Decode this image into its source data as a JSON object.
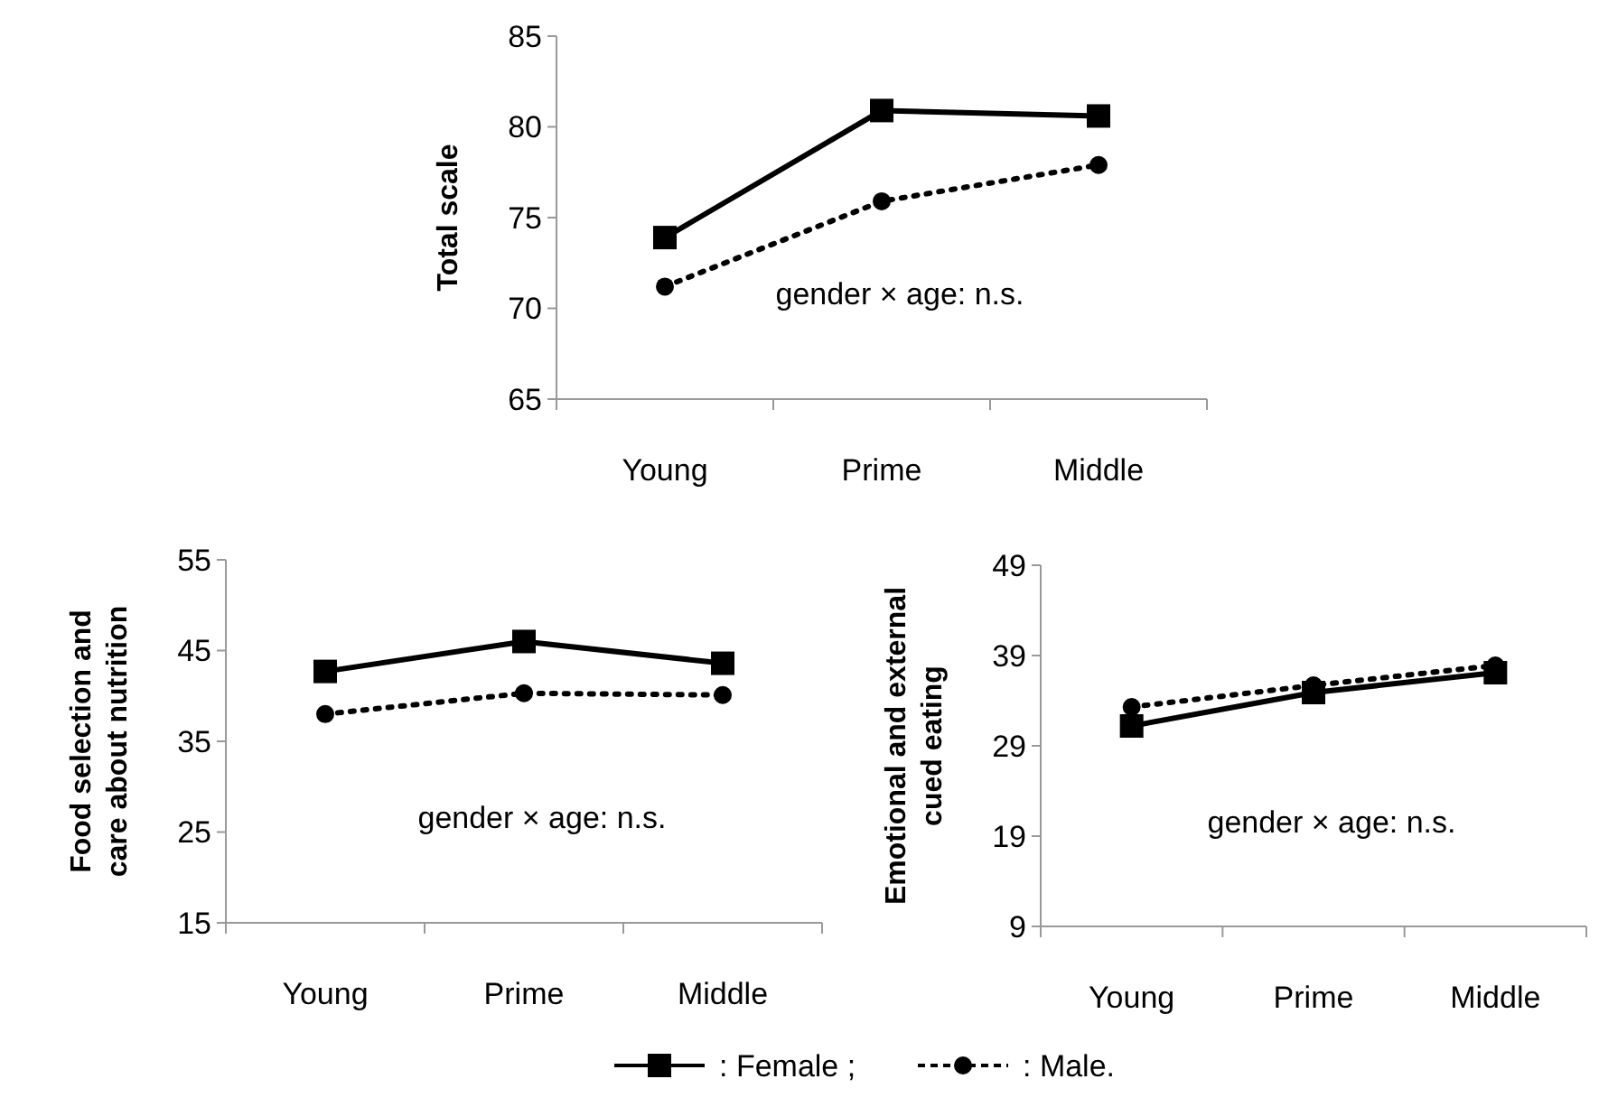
{
  "chart_data": [
    {
      "type": "line",
      "ylabel": "Total scale",
      "categories": [
        "Young",
        "Prime",
        "Middle"
      ],
      "ylim": [
        65,
        85
      ],
      "yticks": [
        65,
        70,
        75,
        80,
        85
      ],
      "grid": false,
      "legend": "bottom",
      "annotations": [
        "gender × age: n.s."
      ],
      "series": [
        {
          "name": ": Female ;",
          "color": "#000000",
          "marker": "square",
          "line_style": "solid",
          "values": [
            73.9,
            80.9,
            80.6
          ]
        },
        {
          "name": ": Male.",
          "color": "#000000",
          "marker": "circle",
          "line_style": "dotted",
          "values": [
            71.2,
            75.9,
            77.9
          ]
        }
      ]
    },
    {
      "type": "line",
      "ylabel": "Food selection and\ncare about nutrition",
      "categories": [
        "Young",
        "Prime",
        "Middle"
      ],
      "ylim": [
        15,
        55
      ],
      "yticks": [
        15,
        25,
        35,
        45,
        55
      ],
      "grid": false,
      "annotations": [
        "gender × age: n.s."
      ],
      "series": [
        {
          "color": "#000000",
          "marker": "square",
          "line_style": "solid",
          "values": [
            42.7,
            46.0,
            43.6
          ]
        },
        {
          "color": "#000000",
          "marker": "circle",
          "line_style": "dotted",
          "values": [
            38.0,
            40.3,
            40.1
          ]
        }
      ]
    },
    {
      "type": "line",
      "ylabel": "Emotional and external\ncued eating",
      "categories": [
        "Young",
        "Prime",
        "Middle"
      ],
      "ylim": [
        9,
        49
      ],
      "yticks": [
        9,
        19,
        29,
        39,
        49
      ],
      "grid": false,
      "annotations": [
        "gender × age: n.s."
      ],
      "series": [
        {
          "color": "#000000",
          "marker": "square",
          "line_style": "solid",
          "values": [
            31.2,
            34.9,
            37.1
          ]
        },
        {
          "color": "#000000",
          "marker": "circle",
          "line_style": "dotted",
          "values": [
            33.3,
            35.7,
            37.9
          ]
        }
      ]
    }
  ]
}
